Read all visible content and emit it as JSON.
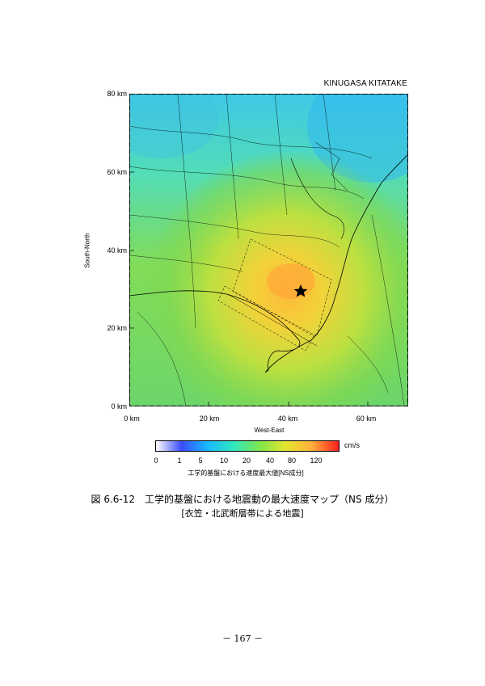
{
  "map": {
    "title": "KINUGASA KITATAKE",
    "y_ticks": [
      "80 km",
      "60 km",
      "40 km",
      "20 km",
      "0 km"
    ],
    "x_ticks": [
      "0 km",
      "20 km",
      "40 km",
      "60 km"
    ],
    "ylabel": "South-North",
    "xlabel": "West-East",
    "x_range_km": [
      0,
      70
    ],
    "y_range_km": [
      0,
      80
    ],
    "epicenter_symbol": "star-icon"
  },
  "colorbar": {
    "unit": "cm/s",
    "ticks": [
      "0",
      "1",
      "5",
      "10",
      "20",
      "40",
      "80",
      "120"
    ],
    "colors": [
      "#ffffff",
      "#3a4cff",
      "#18b8ff",
      "#2ee6c4",
      "#7ee64a",
      "#e6e62e",
      "#ffb03a",
      "#ff2020"
    ],
    "caption": "工学的基盤における速度最大値[NS成分]"
  },
  "figure": {
    "caption": "図 6.6-12　工学的基盤における地震動の最大速度マップ（NS 成分）",
    "subcaption": "[衣笠・北武断層帯による地震]"
  },
  "page": {
    "number": "－ 167 －"
  }
}
